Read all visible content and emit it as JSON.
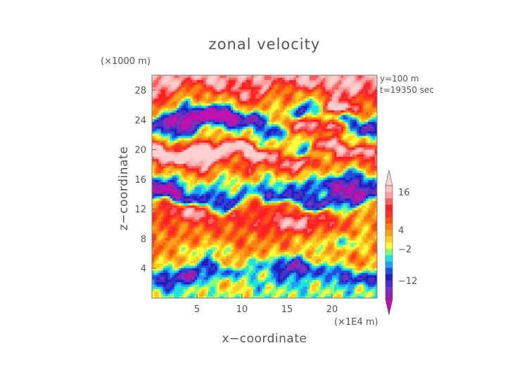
{
  "chart_data": {
    "type": "heatmap",
    "title": "zonal velocity",
    "xlabel": "x−coordinate",
    "ylabel": "z−coordinate",
    "x_unit": "(×1E4 m)",
    "y_unit": "(×1000 m)",
    "annotations": [
      "y=100 m",
      "t=19350 sec"
    ],
    "xlim": [
      0,
      25
    ],
    "ylim": [
      0,
      30
    ],
    "x_ticks": [
      5,
      10,
      15,
      20
    ],
    "y_ticks": [
      4,
      8,
      12,
      16,
      20,
      24,
      28
    ],
    "colorbar": {
      "labels": [
        {
          "value": 16,
          "text": "16"
        },
        {
          "value": 4,
          "text": "4"
        },
        {
          "value": -2,
          "text": "−2"
        },
        {
          "value": -12,
          "text": "−12"
        }
      ],
      "levels": [
        -20,
        -18,
        -16,
        -14,
        -12,
        -10,
        -8,
        -6,
        -4,
        -2,
        0,
        2,
        4,
        6,
        8,
        10,
        12,
        14,
        16,
        18,
        20
      ],
      "colors": [
        "#c010b0",
        "#9020a8",
        "#7a30c0",
        "#4a30c8",
        "#2020c0",
        "#2050e0",
        "#20a0ff",
        "#20e0e0",
        "#80ff80",
        "#ffff40",
        "#ffd020",
        "#ffa020",
        "#ff8010",
        "#ff5010",
        "#ff3030",
        "#ff2020",
        "#ff6060",
        "#ffa0a0",
        "#ffc0c0",
        "#ffd0d0"
      ],
      "extend": "both"
    },
    "grid": false
  }
}
